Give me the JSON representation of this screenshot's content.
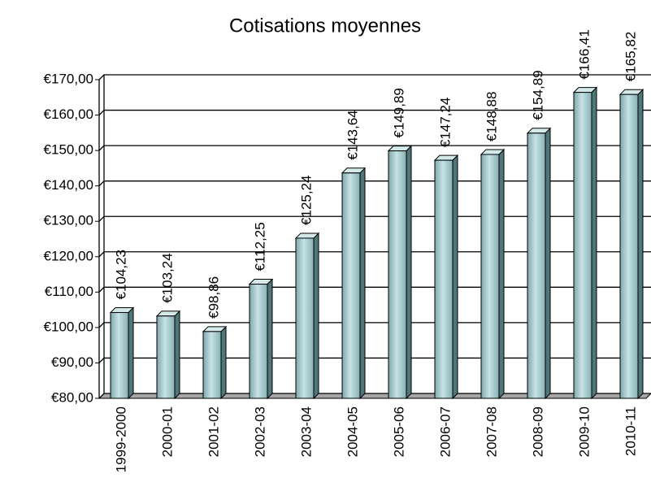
{
  "chart_data": {
    "type": "bar3d",
    "title": "Cotisations moyennes",
    "categories": [
      "1999-2000",
      "2000-01",
      "2001-02",
      "2002-03",
      "2003-04",
      "2004-05",
      "2005-06",
      "2006-07",
      "2007-08",
      "2008-09",
      "2009-10",
      "2010-11"
    ],
    "values": [
      104.23,
      103.24,
      98.86,
      112.25,
      125.24,
      143.64,
      149.89,
      147.24,
      148.88,
      154.89,
      166.41,
      165.82
    ],
    "value_labels": [
      "€104,23",
      "€103,24",
      "€98,86",
      "€112,25",
      "€125,24",
      "€143,64",
      "€149,89",
      "€147,24",
      "€148,88",
      "€154,89",
      "€166,41",
      "€165,82"
    ],
    "color": "#93bfc4",
    "ylim": [
      80,
      170
    ],
    "yticks": [
      {
        "value": 80,
        "label": "€80,00"
      },
      {
        "value": 90,
        "label": "€90,00"
      },
      {
        "value": 100,
        "label": "€100,00"
      },
      {
        "value": 110,
        "label": "€110,00"
      },
      {
        "value": 120,
        "label": "€120,00"
      },
      {
        "value": 130,
        "label": "€130,00"
      },
      {
        "value": 140,
        "label": "€140,00"
      },
      {
        "value": 150,
        "label": "€150,00"
      },
      {
        "value": 160,
        "label": "€160,00"
      },
      {
        "value": 170,
        "label": "€170,00"
      }
    ],
    "grid": true
  }
}
